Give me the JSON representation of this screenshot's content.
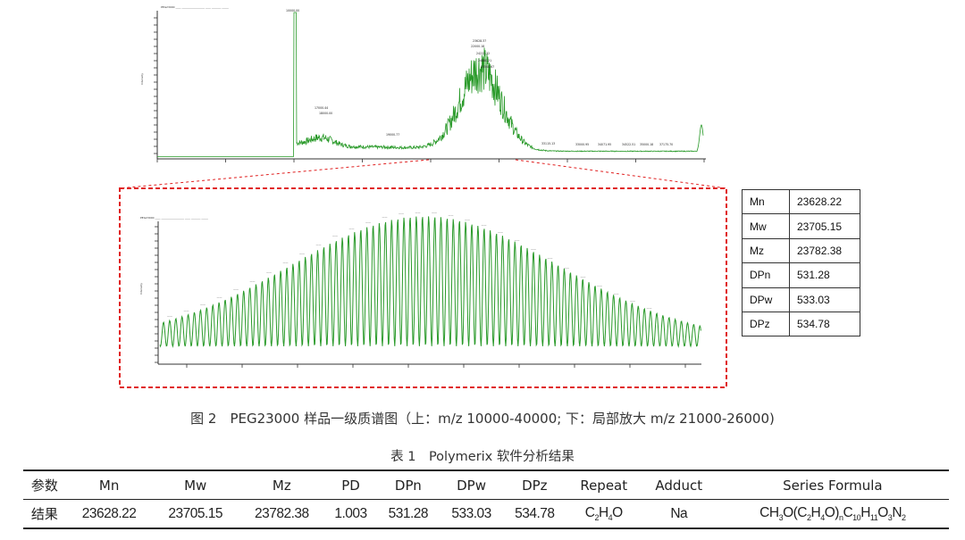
{
  "figure": {
    "top_spectrum": {
      "peak_labels": [
        "10000.00",
        "17000.44",
        "18000.00",
        "19000.77",
        "23628.37",
        "22000.18",
        "24222.32",
        "24880.21",
        "25500.67",
        "33115.13",
        "33000.95",
        "34071.95",
        "34522.51",
        "35000.18",
        "37175.70"
      ]
    },
    "zoom_spectrum": {},
    "caption": "图 2　PEG23000 样品一级质谱图（上：m/z 10000-40000; 下：局部放大 m/z 21000-26000)"
  },
  "stats": [
    {
      "key": "Mn",
      "value": "23628.22"
    },
    {
      "key": "Mw",
      "value": "23705.15"
    },
    {
      "key": "Mz",
      "value": "23782.38"
    },
    {
      "key": "DPn",
      "value": "531.28"
    },
    {
      "key": "DPw",
      "value": "533.03"
    },
    {
      "key": "DPz",
      "value": "534.78"
    }
  ],
  "table": {
    "caption": "表 1　Polymerix 软件分析结果",
    "headers": [
      "参数",
      "Mn",
      "Mw",
      "Mz",
      "PD",
      "DPn",
      "DPw",
      "DPz",
      "Repeat",
      "Adduct",
      "Series Formula"
    ],
    "row": {
      "label": "结果",
      "mn": "23628.22",
      "mw": "23705.15",
      "mz": "23782.38",
      "pd": "1.003",
      "dpn": "531.28",
      "dpw": "533.03",
      "dpz": "534.78",
      "repeat": "C2H4O",
      "adduct": "Na",
      "formula": "CH3O(C2H4O)nC10H11O3N2"
    }
  },
  "colors": {
    "spectrum": "#2a9a2a",
    "zoom_box": "#e02020",
    "axis": "#333333"
  }
}
